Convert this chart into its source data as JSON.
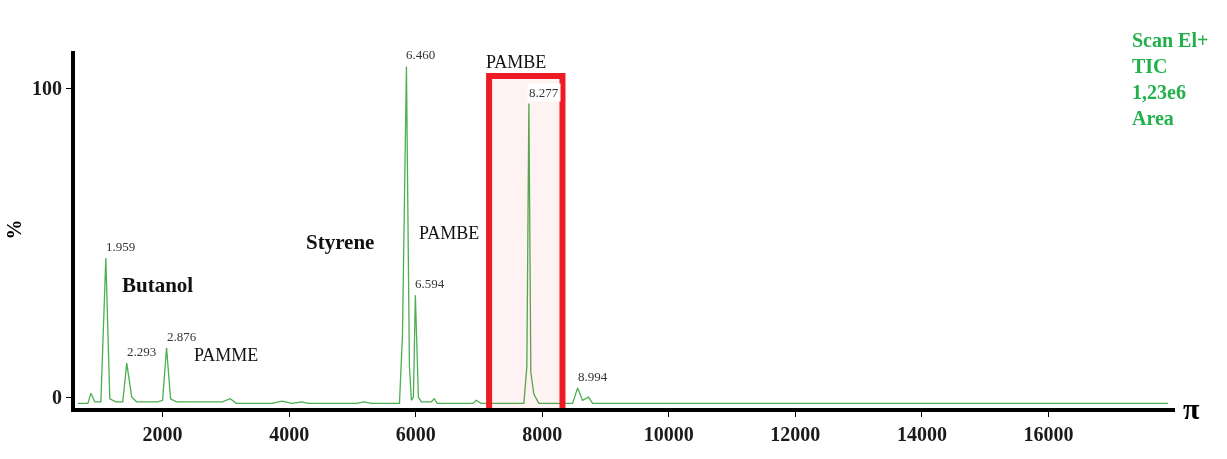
{
  "chart_data": {
    "type": "line",
    "ylabel": "%",
    "x": [
      663,
      820,
      867,
      930,
      1025,
      1103,
      1166,
      1261,
      1371,
      1434,
      1512,
      1591,
      1921,
      2000,
      2063,
      2126,
      2220,
      2944,
      3070,
      3164,
      3730,
      3888,
      4045,
      4202,
      4296,
      5067,
      5177,
      5303,
      5744,
      5791,
      5854,
      5901,
      5932,
      5964,
      5995,
      6043,
      6090,
      6247,
      6294,
      6341,
      6908,
      6955,
      7034,
      7710,
      7757,
      7789,
      7820,
      7867,
      7946,
      8480,
      8559,
      8637,
      8732,
      8795,
      9708,
      10652,
      17888
    ],
    "series": [
      {
        "color": "#4caf50",
        "values": [
          -2,
          -2,
          1.3,
          -1.5,
          -1.5,
          45,
          -0.5,
          -1.5,
          -1.5,
          11,
          0,
          -1.5,
          -1.5,
          -1,
          16,
          -0.5,
          -1.5,
          -1.5,
          -0.5,
          -2,
          -2,
          -1.3,
          -2,
          -1.5,
          -2,
          -2,
          -1.5,
          -2,
          -2,
          20,
          107,
          10,
          -1,
          0,
          33,
          0,
          -1.5,
          -1.5,
          -0.5,
          -2,
          -2,
          -1,
          -2,
          -2,
          10,
          95,
          8,
          1,
          -2,
          -2,
          3,
          -1,
          0,
          -2,
          -2,
          -2,
          -2
        ]
      }
    ],
    "xlim": [
      616,
      18000
    ],
    "ylim": [
      -3.5,
      112
    ],
    "xticks": [
      2000,
      4000,
      6000,
      8000,
      10000,
      12000,
      14000,
      16000
    ],
    "yticks": [
      0,
      100
    ],
    "marker": "none",
    "line_style": "solid",
    "bands": [
      {
        "axis": "x",
        "from": 7160,
        "to": 8320,
        "label": null,
        "color": "#ed1c24"
      }
    ],
    "annotations": [
      {
        "text": "1.959",
        "x": 1103,
        "y": 45
      },
      {
        "text": "2.293",
        "x": 1434,
        "y": 11
      },
      {
        "text": "2.876",
        "x": 2063,
        "y": 16
      },
      {
        "text": "6.460",
        "x": 5854,
        "y": 107
      },
      {
        "text": "6.594",
        "x": 5995,
        "y": 33
      },
      {
        "text": "8.277",
        "x": 7789,
        "y": 95
      },
      {
        "text": "8.994",
        "x": 8559,
        "y": 3
      },
      "Butanol",
      "PAMME",
      "Styrene",
      "PAMBE",
      "PAMBE",
      "Scan El+\nTIC\n1,23e6\nArea",
      "π"
    ]
  }
}
